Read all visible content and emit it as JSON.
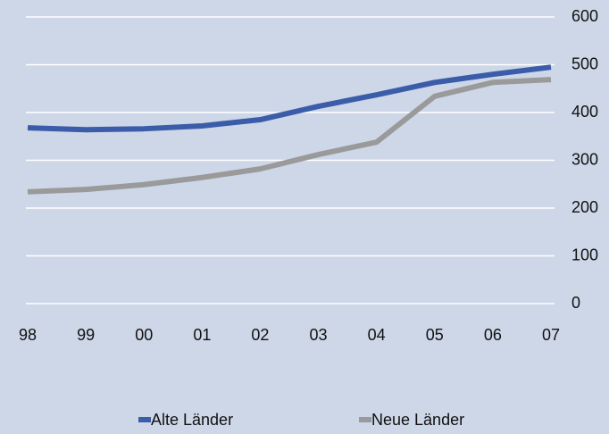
{
  "chart_data": {
    "type": "line",
    "categories": [
      "98",
      "99",
      "00",
      "01",
      "02",
      "03",
      "04",
      "05",
      "06",
      "07"
    ],
    "series": [
      {
        "name": "Alte Länder",
        "color": "#3b5ca8",
        "values": [
          368,
          364,
          366,
          372,
          385,
          413,
          437,
          463,
          480,
          495
        ]
      },
      {
        "name": "Neue Länder",
        "color": "#9a9a9a",
        "values": [
          234,
          239,
          249,
          264,
          282,
          312,
          338,
          434,
          463,
          469
        ]
      }
    ],
    "ylim": [
      0,
      600
    ],
    "yticks": [
      0,
      100,
      200,
      300,
      400,
      500,
      600
    ],
    "grid": true,
    "y_axis_side": "right",
    "legend": "bottom"
  }
}
